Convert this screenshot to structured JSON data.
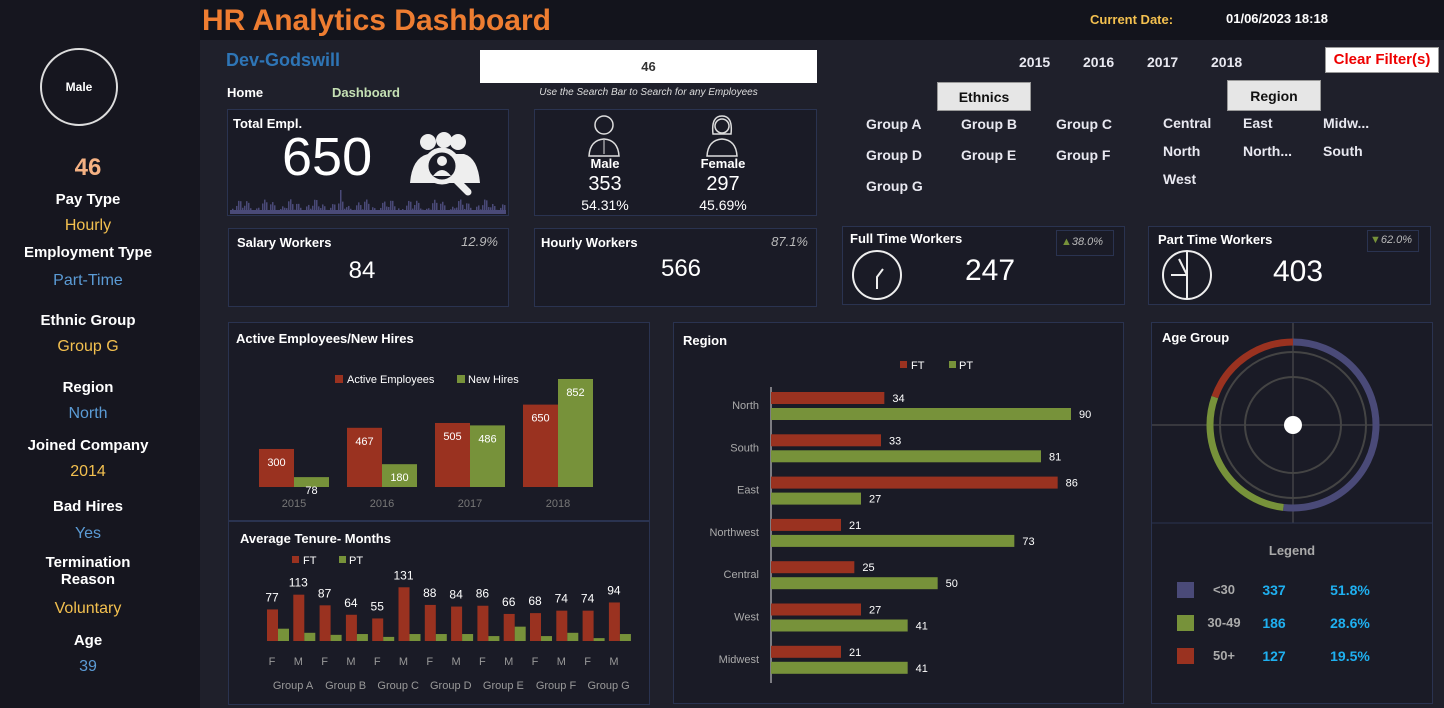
{
  "title": "HR Analytics Dashboard",
  "current_date_label": "Current Date:",
  "current_date": "01/06/2023 18:18",
  "author": "Dev-Godswill",
  "nav": {
    "home": "Home",
    "dashboard": "Dashboard"
  },
  "search": {
    "value": "46",
    "hint": "Use the Search Bar to Search for any Employees"
  },
  "years": [
    "2015",
    "2016",
    "2017",
    "2018"
  ],
  "clear_filters": "Clear Filter(s)",
  "ethnics": {
    "title": "Ethnics",
    "items": [
      "Group A",
      "Group B",
      "Group C",
      "Group D",
      "Group E",
      "Group F",
      "Group G"
    ]
  },
  "region_slicer": {
    "title": "Region",
    "items": [
      "Central",
      "East",
      "Midw...",
      "North",
      "North...",
      "South",
      "West"
    ]
  },
  "sidebar": {
    "gender": "Male",
    "id": "46",
    "fields": [
      {
        "label": "Pay Type",
        "value": "Hourly"
      },
      {
        "label": "Employment Type",
        "value": "Part-Time"
      },
      {
        "label": "Ethnic Group",
        "value": "Group G"
      },
      {
        "label": "Region",
        "value": "North"
      },
      {
        "label": "Joined Company",
        "value": "2014"
      },
      {
        "label": "Bad Hires",
        "value": "Yes"
      },
      {
        "label": "Termination Reason",
        "value": "Voluntary"
      },
      {
        "label": "Age",
        "value": "39"
      }
    ]
  },
  "kpi": {
    "total": {
      "label": "Total Empl.",
      "value": "650"
    },
    "male": {
      "label": "Male",
      "value": "353",
      "pct": "54.31%"
    },
    "female": {
      "label": "Female",
      "value": "297",
      "pct": "45.69%"
    },
    "salary": {
      "label": "Salary Workers",
      "value": "84",
      "pct": "12.9%"
    },
    "hourly": {
      "label": "Hourly Workers",
      "value": "566",
      "pct": "87.1%"
    },
    "full_time": {
      "label": "Full Time Workers",
      "value": "247",
      "pct": "38.0%",
      "trend": "up"
    },
    "part_time": {
      "label": "Part Time Workers",
      "value": "403",
      "pct": "62.0%",
      "trend": "down"
    }
  },
  "colors": {
    "ft": "#9a3220",
    "pt": "#77923a",
    "purple": "#4a4a78",
    "orange": "#ee7d31",
    "yellow": "#f3c04f",
    "blue": "#5b9bd5",
    "cyan": "#1fb0f0"
  },
  "chart_data": [
    {
      "type": "bar",
      "title": "Active Employees/New Hires",
      "categories": [
        "2015",
        "2016",
        "2017",
        "2018"
      ],
      "series": [
        {
          "name": "Active Employees",
          "values": [
            300,
            467,
            505,
            650
          ]
        },
        {
          "name": "New Hires",
          "values": [
            78,
            180,
            486,
            852
          ]
        }
      ],
      "legend": "top"
    },
    {
      "type": "bar",
      "title": "Average Tenure- Months",
      "groups": [
        "Group A",
        "Group B",
        "Group C",
        "Group D",
        "Group E",
        "Group F",
        "Group G"
      ],
      "subcategories": [
        "F",
        "M"
      ],
      "series": [
        {
          "name": "FT",
          "values": [
            77,
            113,
            87,
            64,
            55,
            131,
            88,
            84,
            86,
            66,
            68,
            74,
            74,
            94
          ]
        },
        {
          "name": "PT",
          "values": [
            30,
            20,
            15,
            17,
            10,
            17,
            17,
            17,
            12,
            35,
            12,
            20,
            7,
            17
          ]
        }
      ],
      "legend": "top"
    },
    {
      "type": "bar",
      "orientation": "horizontal",
      "title": "Region",
      "categories": [
        "North",
        "South",
        "East",
        "Northwest",
        "Central",
        "West",
        "Midwest"
      ],
      "series": [
        {
          "name": "FT",
          "values": [
            34,
            33,
            86,
            21,
            25,
            27,
            21
          ]
        },
        {
          "name": "PT",
          "values": [
            90,
            81,
            27,
            73,
            50,
            41,
            41
          ]
        }
      ],
      "legend": "top"
    },
    {
      "type": "pie",
      "title": "Age Group",
      "legend_title": "Legend",
      "categories": [
        "<30",
        "30-49",
        "50+"
      ],
      "values": [
        337,
        186,
        127
      ],
      "percents": [
        "51.8%",
        "28.6%",
        "19.5%"
      ]
    }
  ]
}
